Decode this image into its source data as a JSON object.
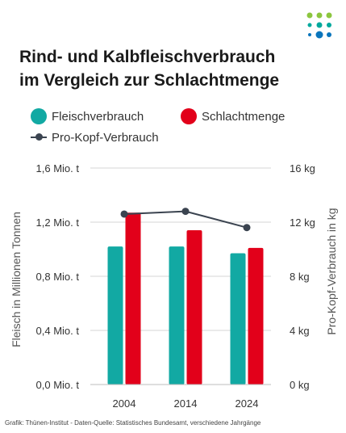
{
  "logo": {
    "icon": "thuenen-dots-logo",
    "colors": [
      "#8cc63f",
      "#00a99d",
      "#0a75bc"
    ]
  },
  "title_lines": [
    "Rind- und Kalbfleischverbrauch",
    "im Vergleich zur Schlachtmenge"
  ],
  "legend": [
    {
      "label": "Fleischverbrauch",
      "color": "#12a9a3",
      "shape": "dot"
    },
    {
      "label": "Schlachtmenge",
      "color": "#e2001a",
      "shape": "dot"
    },
    {
      "label": "Pro-Kopf-Verbrauch",
      "color": "#3b4450",
      "shape": "line"
    }
  ],
  "footer": "Grafik: Thünen-Institut - Daten-Quelle: Statistisches Bundesamt, verschiedene Jahrgänge",
  "chart_data": {
    "type": "bar",
    "categories": [
      "2004",
      "2014",
      "2024"
    ],
    "series": [
      {
        "name": "Fleischverbrauch",
        "axis": "left",
        "type": "bar",
        "color": "#12a9a3",
        "values": [
          1.02,
          1.02,
          0.97
        ]
      },
      {
        "name": "Schlachtmenge",
        "axis": "left",
        "type": "bar",
        "color": "#e2001a",
        "values": [
          1.27,
          1.14,
          1.01
        ]
      },
      {
        "name": "Pro-Kopf-Verbrauch",
        "axis": "right",
        "type": "line",
        "color": "#3b4450",
        "values": [
          12.6,
          12.8,
          11.6
        ]
      }
    ],
    "ylabel": "Fleisch in Millionen Tonnen",
    "y2label": "Pro-Kopf-Verbrauch in kg",
    "ylim": [
      0,
      1.6
    ],
    "y2lim": [
      0,
      16
    ],
    "y_ticks": [
      0,
      0.4,
      0.8,
      1.2,
      1.6
    ],
    "y_tick_labels": [
      "0,0 Mio. t",
      "0,4 Mio. t",
      "0,8 Mio. t",
      "1,2 Mio. t",
      "1,6 Mio. t"
    ],
    "y2_ticks": [
      0,
      4,
      8,
      12,
      16
    ],
    "y2_tick_labels": [
      "0 kg",
      "4 kg",
      "8 kg",
      "12 kg",
      "16 kg"
    ],
    "grid": true,
    "legend_position": "top"
  }
}
